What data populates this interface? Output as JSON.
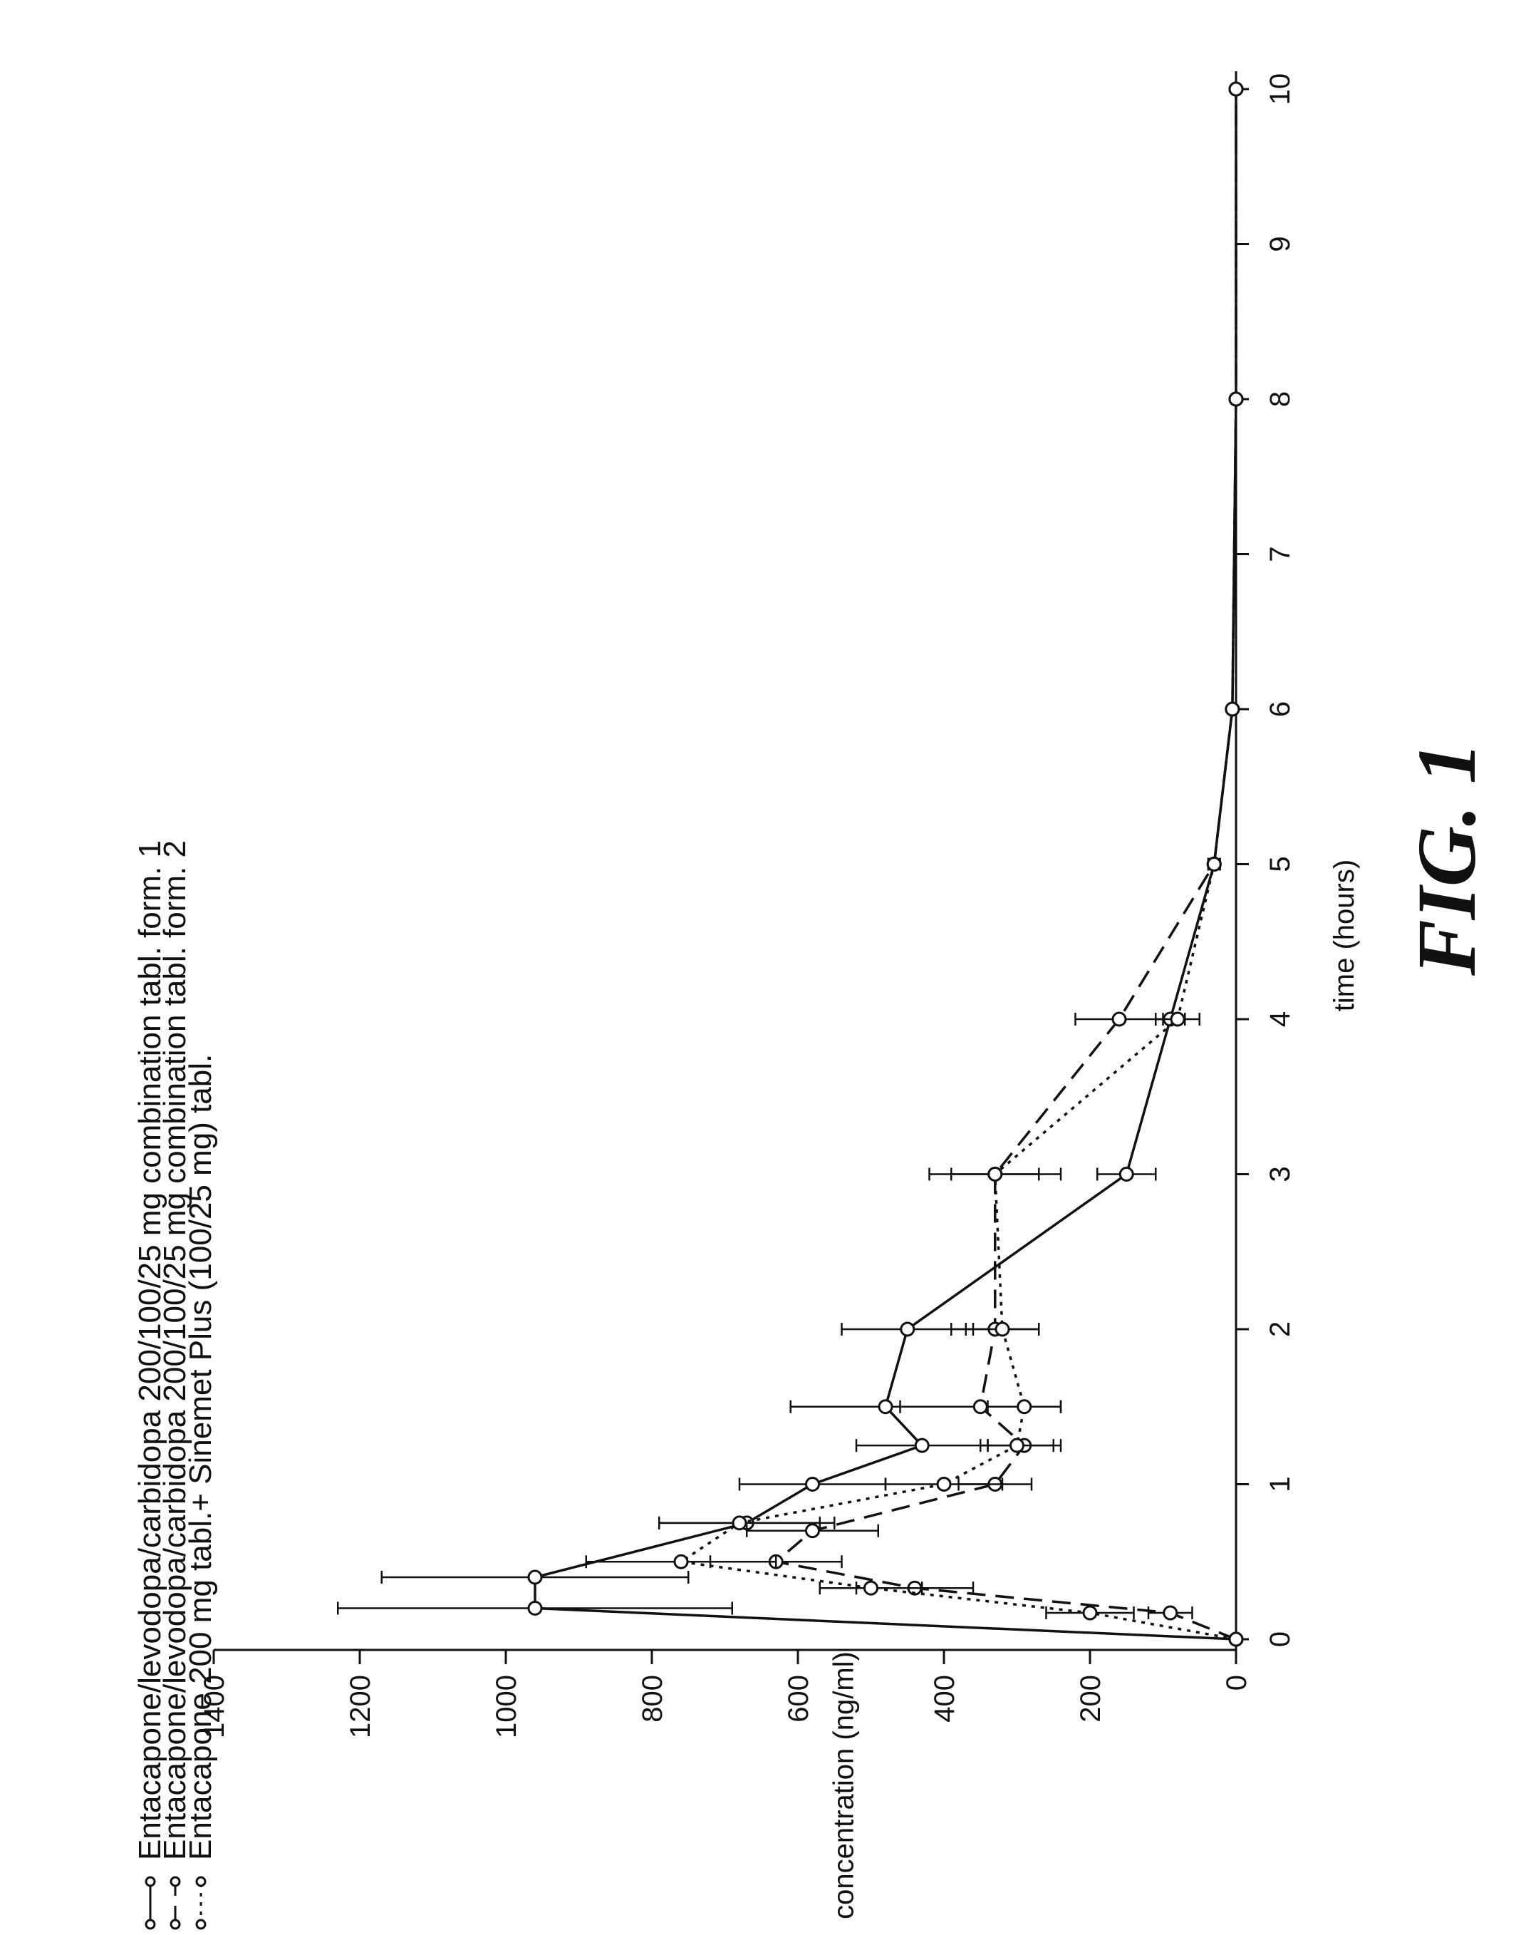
{
  "chart_data": {
    "type": "line",
    "title": "",
    "xlabel": "time (hours)",
    "ylabel": "concentration (ng/ml)",
    "xlim": [
      0,
      10
    ],
    "ylim": [
      0,
      1400
    ],
    "x_ticks": [
      "0",
      "1",
      "2",
      "3",
      "4",
      "5",
      "6",
      "7",
      "8",
      "9",
      "10"
    ],
    "y_ticks": [
      "0",
      "200",
      "400",
      "600",
      "800",
      "1000",
      "1200",
      "1400"
    ],
    "grid": false,
    "legend_position": "top",
    "caption": "FIG. 1",
    "series": [
      {
        "name": "Entacapone/levodopa/carbidopa 200/100/25 mg combination tabl. form. 1",
        "line_style": "solid",
        "points": [
          {
            "x": 0,
            "y": 0,
            "err": 0
          },
          {
            "x": 0.2,
            "y": 960,
            "err": 270
          },
          {
            "x": 0.4,
            "y": 960,
            "err": 210
          },
          {
            "x": 0.75,
            "y": 670,
            "err": 120
          },
          {
            "x": 1,
            "y": 580,
            "err": 100
          },
          {
            "x": 1.25,
            "y": 430,
            "err": 90
          },
          {
            "x": 1.5,
            "y": 480,
            "err": 130
          },
          {
            "x": 2,
            "y": 450,
            "err": 90
          },
          {
            "x": 3,
            "y": 150,
            "err": 40
          },
          {
            "x": 4,
            "y": 90,
            "err": 20
          },
          {
            "x": 5,
            "y": 30,
            "err": 8
          },
          {
            "x": 6,
            "y": 5,
            "err": 0
          },
          {
            "x": 8,
            "y": 0,
            "err": 0
          },
          {
            "x": 10,
            "y": 0,
            "err": 0
          }
        ]
      },
      {
        "name": "Entacapone/levodopa/carbidopa 200/100/25 mg combination tabl. form. 2",
        "line_style": "dashed",
        "points": [
          {
            "x": 0,
            "y": 0,
            "err": 0
          },
          {
            "x": 0.17,
            "y": 90,
            "err": 30
          },
          {
            "x": 0.33,
            "y": 440,
            "err": 80
          },
          {
            "x": 0.5,
            "y": 630,
            "err": 90
          },
          {
            "x": 0.7,
            "y": 580,
            "err": 90
          },
          {
            "x": 1,
            "y": 330,
            "err": 50
          },
          {
            "x": 1.25,
            "y": 290,
            "err": 50
          },
          {
            "x": 1.5,
            "y": 350,
            "err": 110
          },
          {
            "x": 2,
            "y": 330,
            "err": 60
          },
          {
            "x": 3,
            "y": 330,
            "err": 60
          },
          {
            "x": 4,
            "y": 160,
            "err": 60
          },
          {
            "x": 5,
            "y": 30,
            "err": 8
          },
          {
            "x": 6,
            "y": 5,
            "err": 0
          },
          {
            "x": 8,
            "y": 0,
            "err": 0
          },
          {
            "x": 10,
            "y": 0,
            "err": 0
          }
        ]
      },
      {
        "name": "Entacapone 200 mg tabl.+ Sinemet Plus (100/25 mg) tabl.",
        "line_style": "dotted",
        "points": [
          {
            "x": 0,
            "y": 0,
            "err": 0
          },
          {
            "x": 0.17,
            "y": 200,
            "err": 60
          },
          {
            "x": 0.33,
            "y": 500,
            "err": 70
          },
          {
            "x": 0.5,
            "y": 760,
            "err": 130
          },
          {
            "x": 0.75,
            "y": 680,
            "err": 110
          },
          {
            "x": 1,
            "y": 400,
            "err": 80
          },
          {
            "x": 1.25,
            "y": 300,
            "err": 50
          },
          {
            "x": 1.5,
            "y": 290,
            "err": 50
          },
          {
            "x": 2,
            "y": 320,
            "err": 50
          },
          {
            "x": 3,
            "y": 330,
            "err": 90
          },
          {
            "x": 4,
            "y": 80,
            "err": 30
          },
          {
            "x": 5,
            "y": 30,
            "err": 8
          },
          {
            "x": 6,
            "y": 5,
            "err": 0
          },
          {
            "x": 8,
            "y": 0,
            "err": 0
          },
          {
            "x": 10,
            "y": 0,
            "err": 0
          }
        ]
      }
    ]
  }
}
